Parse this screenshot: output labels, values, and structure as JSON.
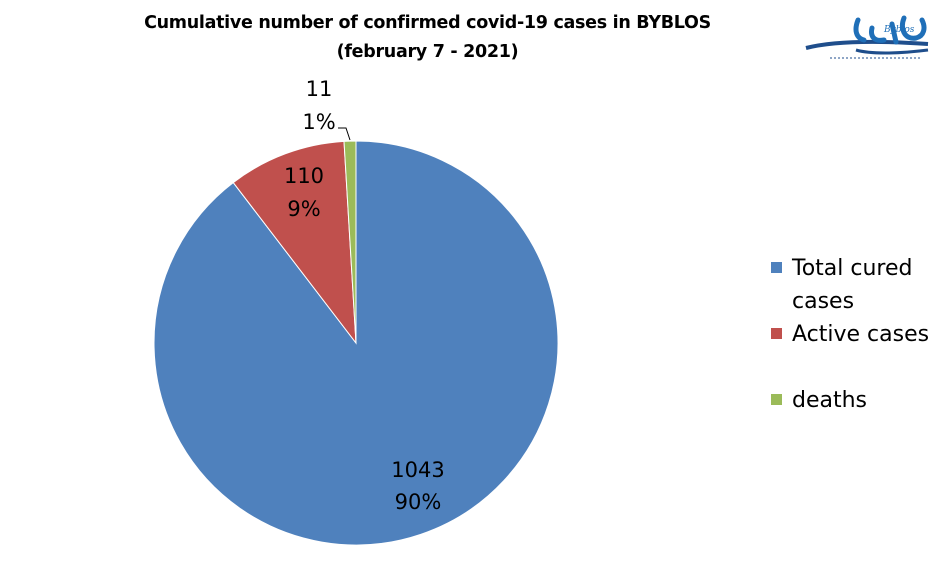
{
  "header": {
    "title_line1": "Cumulative number of confirmed covid-19 cases in BYBLOS",
    "title_line2": "(february  7 - 2021)"
  },
  "logo": {
    "icon": "byblos-logo-icon",
    "text": "Byblos"
  },
  "colors": {
    "cured": "#4f81bd",
    "active": "#c0504d",
    "deaths": "#9bbb59"
  },
  "chart_data": {
    "type": "pie",
    "title": "Cumulative number of confirmed covid-19 cases in BYBLOS (february  7 - 2021)",
    "legend_position": "right",
    "slices": [
      {
        "label": "Total cured cases",
        "value": 1043,
        "percent": "90%",
        "value_label": "1043",
        "color": "#4f81bd"
      },
      {
        "label": "Active cases",
        "value": 110,
        "percent": "9%",
        "value_label": "110",
        "color": "#c0504d"
      },
      {
        "label": "deaths",
        "value": 11,
        "percent": "1%",
        "value_label": "11",
        "color": "#9bbb59"
      }
    ]
  }
}
